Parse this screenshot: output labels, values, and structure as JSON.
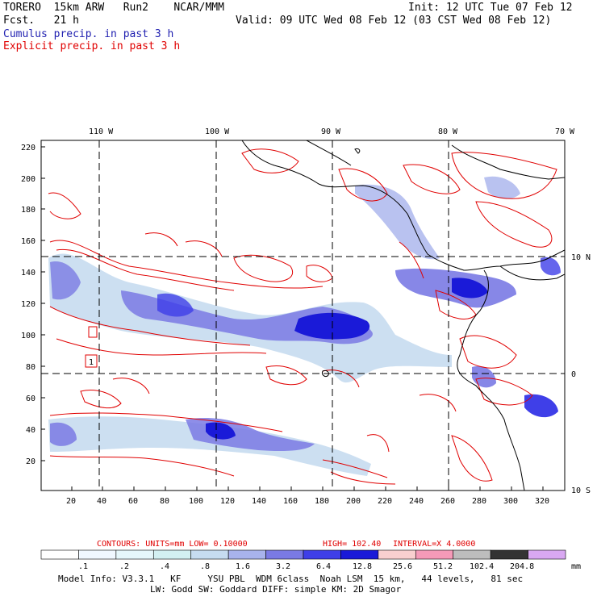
{
  "header": {
    "model": "TORERO  15km ARW   Run2    NCAR/MMM",
    "init": "Init: 12 UTC Tue 07 Feb 12",
    "fcst": "Fcst.   21 h",
    "valid": "Valid: 09 UTC Wed 08 Feb 12 (03 CST Wed 08 Feb 12)",
    "cumulus_label": "Cumulus precip. in past 3 h",
    "explicit_label": "Explicit precip. in past 3 h"
  },
  "map": {
    "lon_labels": [
      "110 W",
      "100 W",
      "90 W",
      "80 W",
      "70 W"
    ],
    "lat_labels": [
      "10 N",
      "0",
      "10 S"
    ],
    "y_ticks": [
      "220",
      "200",
      "180",
      "160",
      "140",
      "120",
      "100",
      "80",
      "60",
      "40",
      "20"
    ],
    "x_ticks": [
      "20",
      "40",
      "60",
      "80",
      "100",
      "120",
      "140",
      "160",
      "180",
      "200",
      "220",
      "240",
      "260",
      "280",
      "300",
      "320"
    ],
    "corner_label": "1"
  },
  "contours": {
    "units": "CONTOURS:  UNITS=mm  LOW= 0.10000",
    "high": "HIGH=  102.40",
    "interval": "INTERVAL=X  4.0000"
  },
  "colorbar": {
    "levels": [
      ".1",
      ".2",
      ".4",
      ".8",
      "1.6",
      "3.2",
      "6.4",
      "12.8",
      "25.6",
      "51.2",
      "102.4",
      "204.8"
    ],
    "unit": "mm",
    "colors": [
      "#ffffff",
      "#f0f8ff",
      "#e6f7fb",
      "#d3f0f2",
      "#c6dcf0",
      "#a8b3ec",
      "#7a7ae4",
      "#3f3fe8",
      "#1a1ad8",
      "#f9cfcf",
      "#f59ab8",
      "#bdbdbd",
      "#333333",
      "#d9a8f2"
    ]
  },
  "model_info": {
    "line1": "Model Info: V3.3.1   KF     YSU PBL  WDM 6class  Noah LSM  15 km,   44 levels,   81 sec",
    "line2": "LW: Godd SW: Goddard DIFF: simple KM: 2D Smagor"
  }
}
